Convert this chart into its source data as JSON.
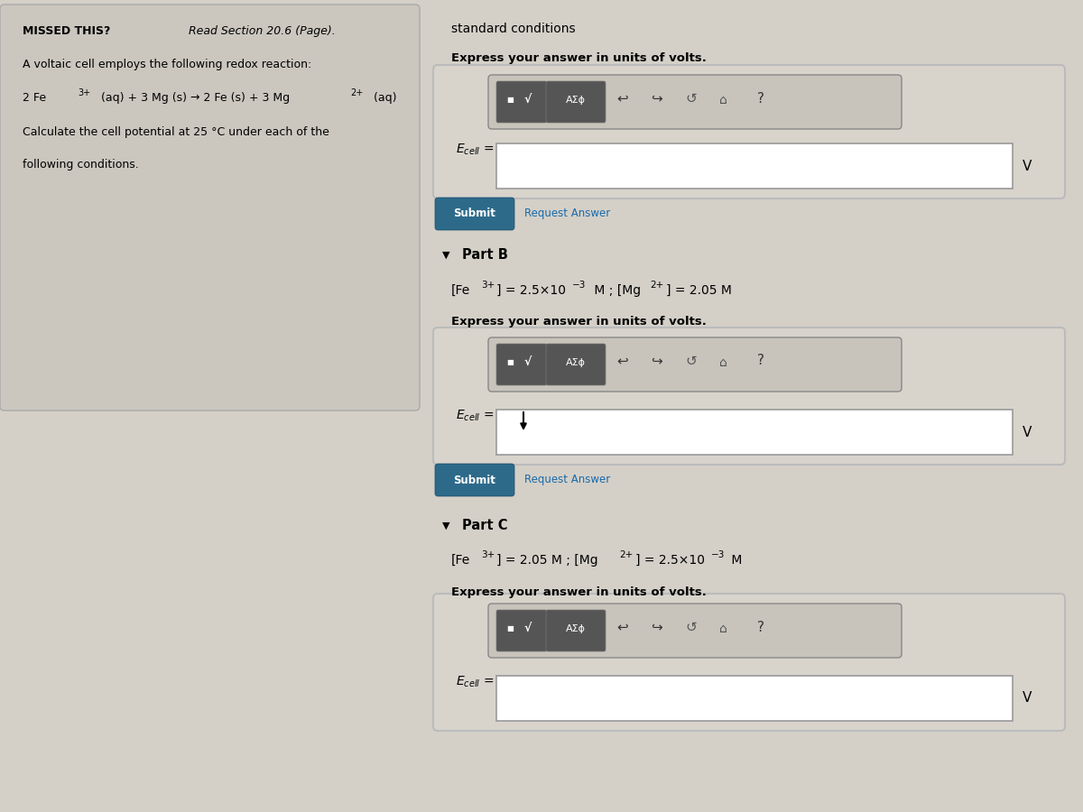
{
  "bg_color": "#d4d0c8",
  "left_panel_bg": "#cbc7bf",
  "missed_this_bold": "MISSED THIS?",
  "missed_this_italic": " Read Section 20.6 (Page).",
  "problem_line1": "A voltaic cell employs the following redox reaction:",
  "problem_line3": "Calculate the cell potential at 25 °C under each of the",
  "problem_line4": "following conditions.",
  "part_a_label": "standard conditions",
  "express_volts": "Express your answer in units of volts.",
  "part_b_bold": "Part B",
  "part_c_bold": "Part C",
  "submit_text": "Submit",
  "request_answer_text": "Request Answer",
  "volts_label": "V",
  "submit_bg": "#2d6a8a",
  "submit_edge": "#1a4a6a",
  "submit_text_color": "#ffffff",
  "request_color": "#1a6aaa",
  "toolbar_bg": "#555555",
  "toolbar_box_bg": "#c8c4bc",
  "toolbar_box_edge": "#888888",
  "outer_box_bg": "#d8d4cc",
  "outer_box_edge": "#bbbbbb",
  "input_box_color": "#ffffff",
  "input_box_border": "#999999",
  "left_panel_edge": "#aaaaaa"
}
